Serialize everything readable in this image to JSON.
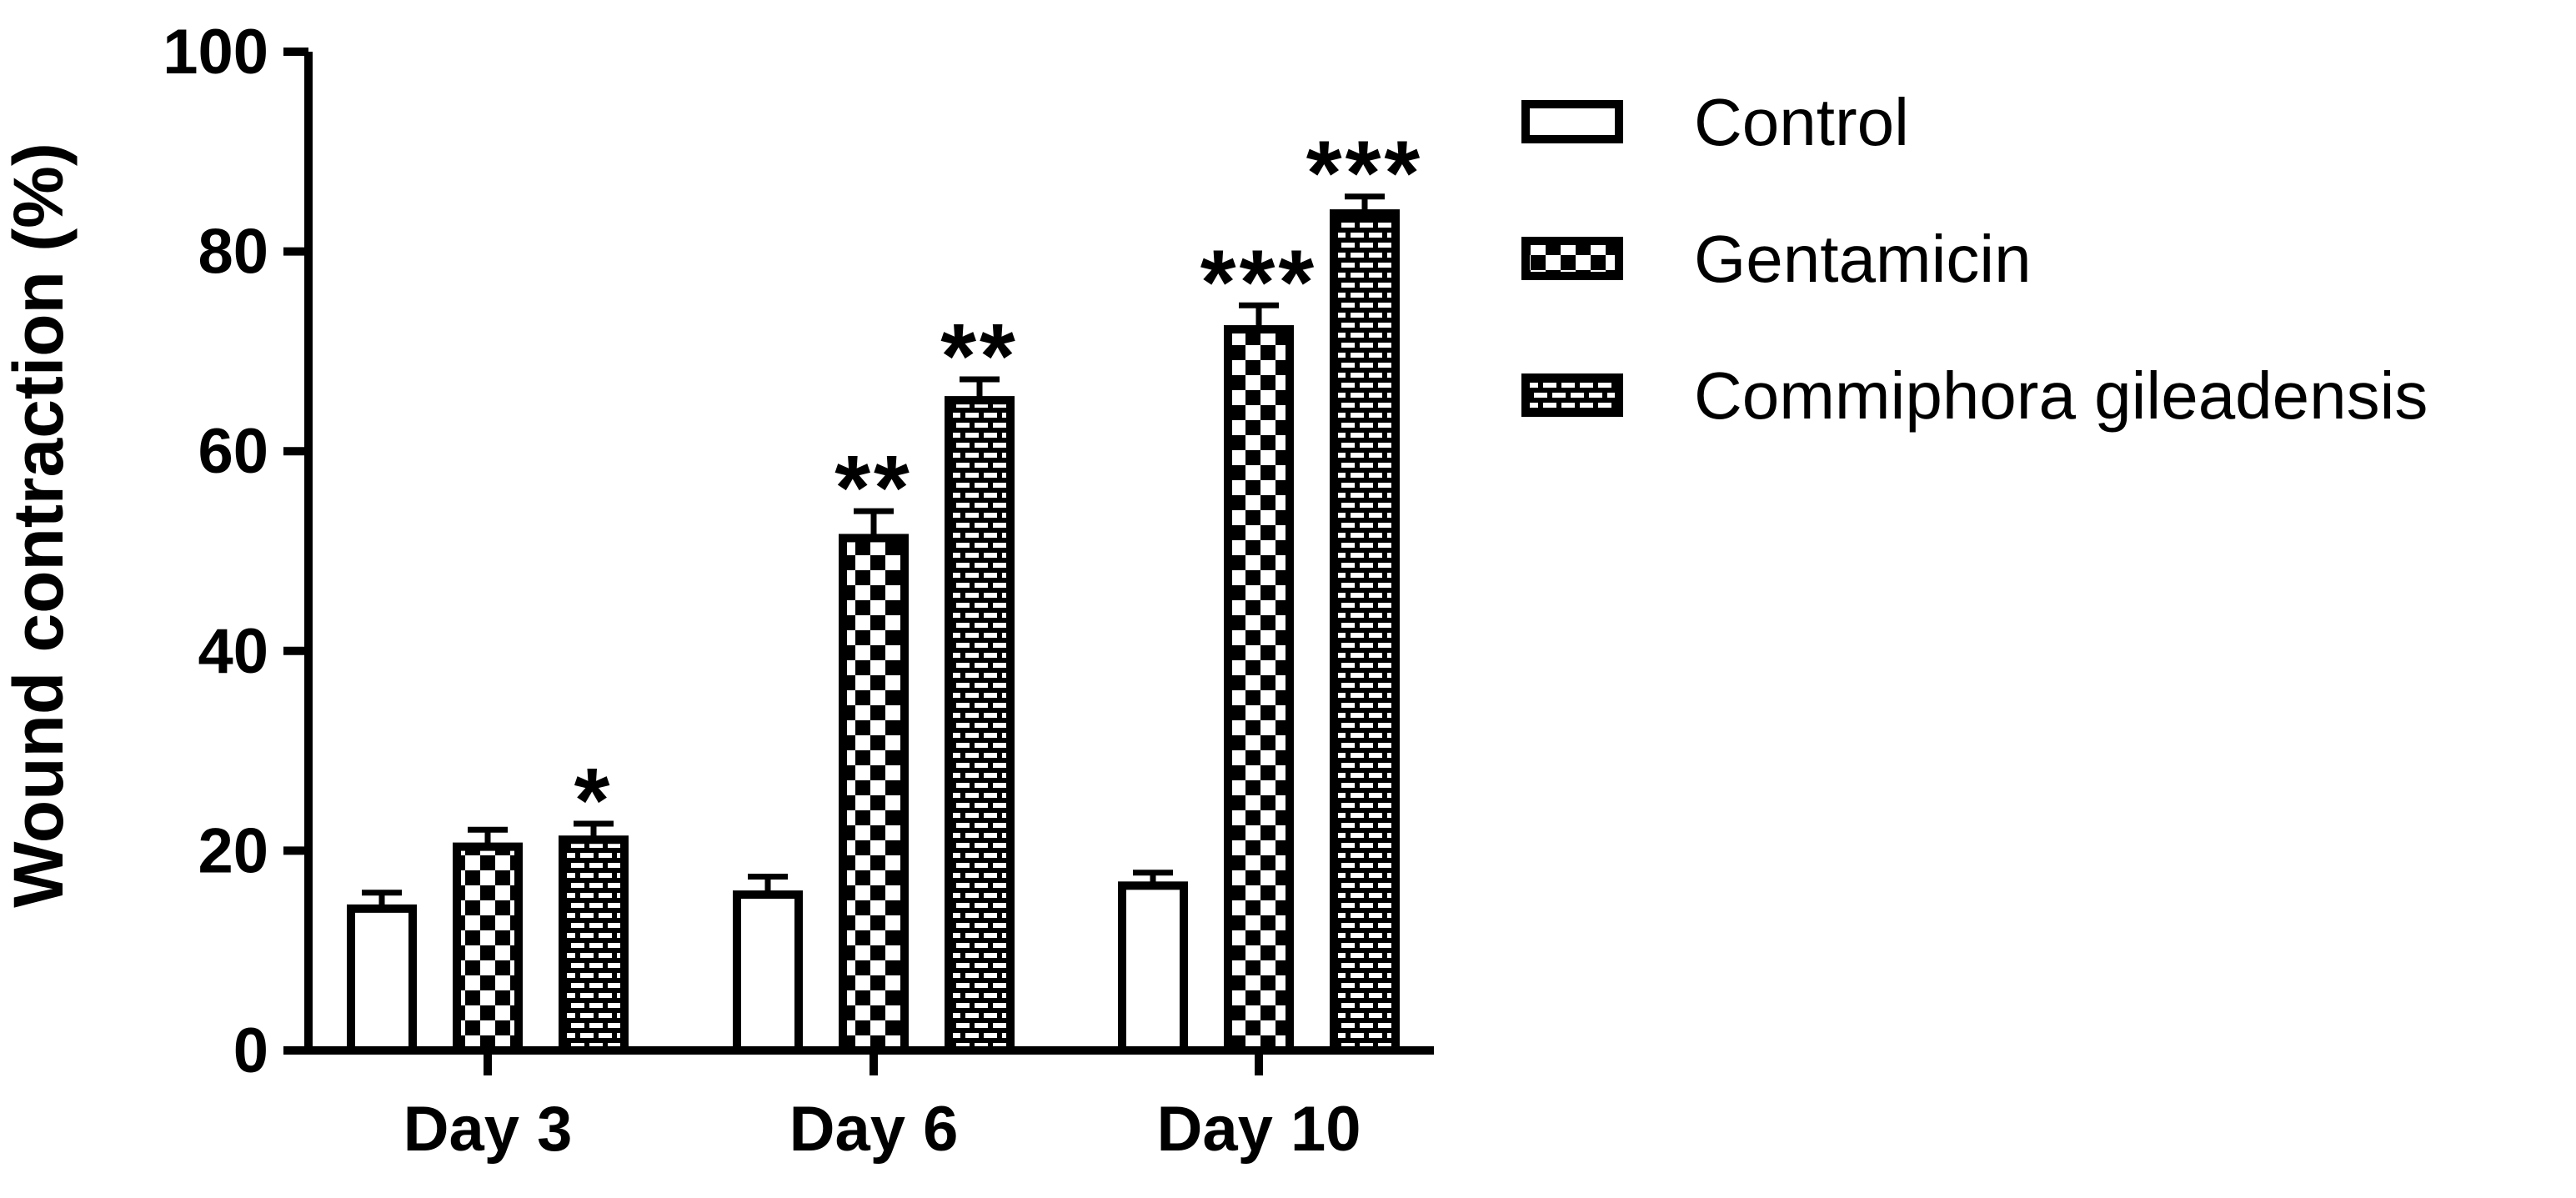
{
  "chart_data": {
    "type": "bar",
    "title": "",
    "xlabel": "",
    "ylabel": "Wound contraction (%)",
    "ylim": [
      0,
      100
    ],
    "yticks": [
      0,
      20,
      40,
      60,
      80,
      100
    ],
    "grid": false,
    "legend_position": "top-right",
    "categories": [
      "Day 3",
      "Day 6",
      "Day 10"
    ],
    "series": [
      {
        "name": "Control",
        "pattern": "white",
        "values": [
          14.2,
          15.6,
          16.5
        ],
        "errors": [
          1.6,
          1.8,
          1.3
        ],
        "significance": [
          "",
          "",
          ""
        ]
      },
      {
        "name": "Gentamicin",
        "pattern": "checker",
        "values": [
          20.4,
          51.3,
          72.2
        ],
        "errors": [
          1.7,
          2.7,
          2.4
        ],
        "significance": [
          "",
          "**",
          "***"
        ]
      },
      {
        "name": "Commiphora gileadensis",
        "pattern": "brick",
        "values": [
          21.1,
          65.1,
          83.8
        ],
        "errors": [
          1.6,
          2.1,
          1.7
        ],
        "significance": [
          "*",
          "**",
          "***"
        ]
      }
    ],
    "colors": {
      "ink": "#000000",
      "fill": "#ffffff"
    }
  }
}
